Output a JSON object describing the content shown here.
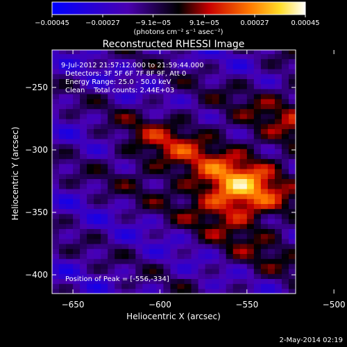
{
  "chart_data": {
    "type": "heatmap",
    "title": "Reconstructed RHESSI Image",
    "xlabel": "Heliocentric X (arcsec)",
    "ylabel": "Heliocentric Y (arcsec)",
    "xlim": [
      -662,
      -522
    ],
    "ylim": [
      -415,
      -220
    ],
    "x_ticks": [
      -650,
      -600,
      -550,
      -500
    ],
    "x_tick_labels": [
      "−650",
      "−600",
      "−550",
      "−500"
    ],
    "y_ticks": [
      -250,
      -300,
      -350,
      -400
    ],
    "y_tick_labels": [
      "−250",
      "−300",
      "−350",
      "−400"
    ],
    "colorbar": {
      "range": [
        -0.00045,
        0.00045
      ],
      "ticks": [
        -0.00045,
        -0.00027,
        -9.1e-05,
        9.1e-05,
        0.00027,
        0.00045
      ],
      "tick_labels": [
        "−0.00045",
        "−0.00027",
        "−9.1e−05",
        "9.1e−05",
        "0.00027",
        "0.00045"
      ],
      "units_label": "(photons cm⁻² s⁻¹ asec⁻²)"
    },
    "annotations": {
      "time_range": "9-Jul-2012 21:57:12.000 to 21:59:44.000",
      "detectors": "Detectors: 3F 5F 6F 7F 8F 9F, Att 0",
      "energy": "Energy Range: 25.0 - 50.0 keV",
      "clean": "Clean    Total counts: 2.44E+03",
      "peak": "Position of Peak = [-556,-334]"
    },
    "peak_position": [
      -556,
      -334
    ],
    "sources": [
      {
        "x": -556,
        "y": -334,
        "amp": 0.00045,
        "sigma": 18
      },
      {
        "x": -595,
        "y": -300,
        "amp": 0.00022,
        "sigma": 22
      },
      {
        "x": -520,
        "y": -275,
        "amp": 0.00018,
        "sigma": 26
      },
      {
        "x": -540,
        "y": -380,
        "amp": 0.0001,
        "sigma": 22
      }
    ],
    "grid": false
  },
  "footer": {
    "date": "2-May-2014 02:19"
  }
}
